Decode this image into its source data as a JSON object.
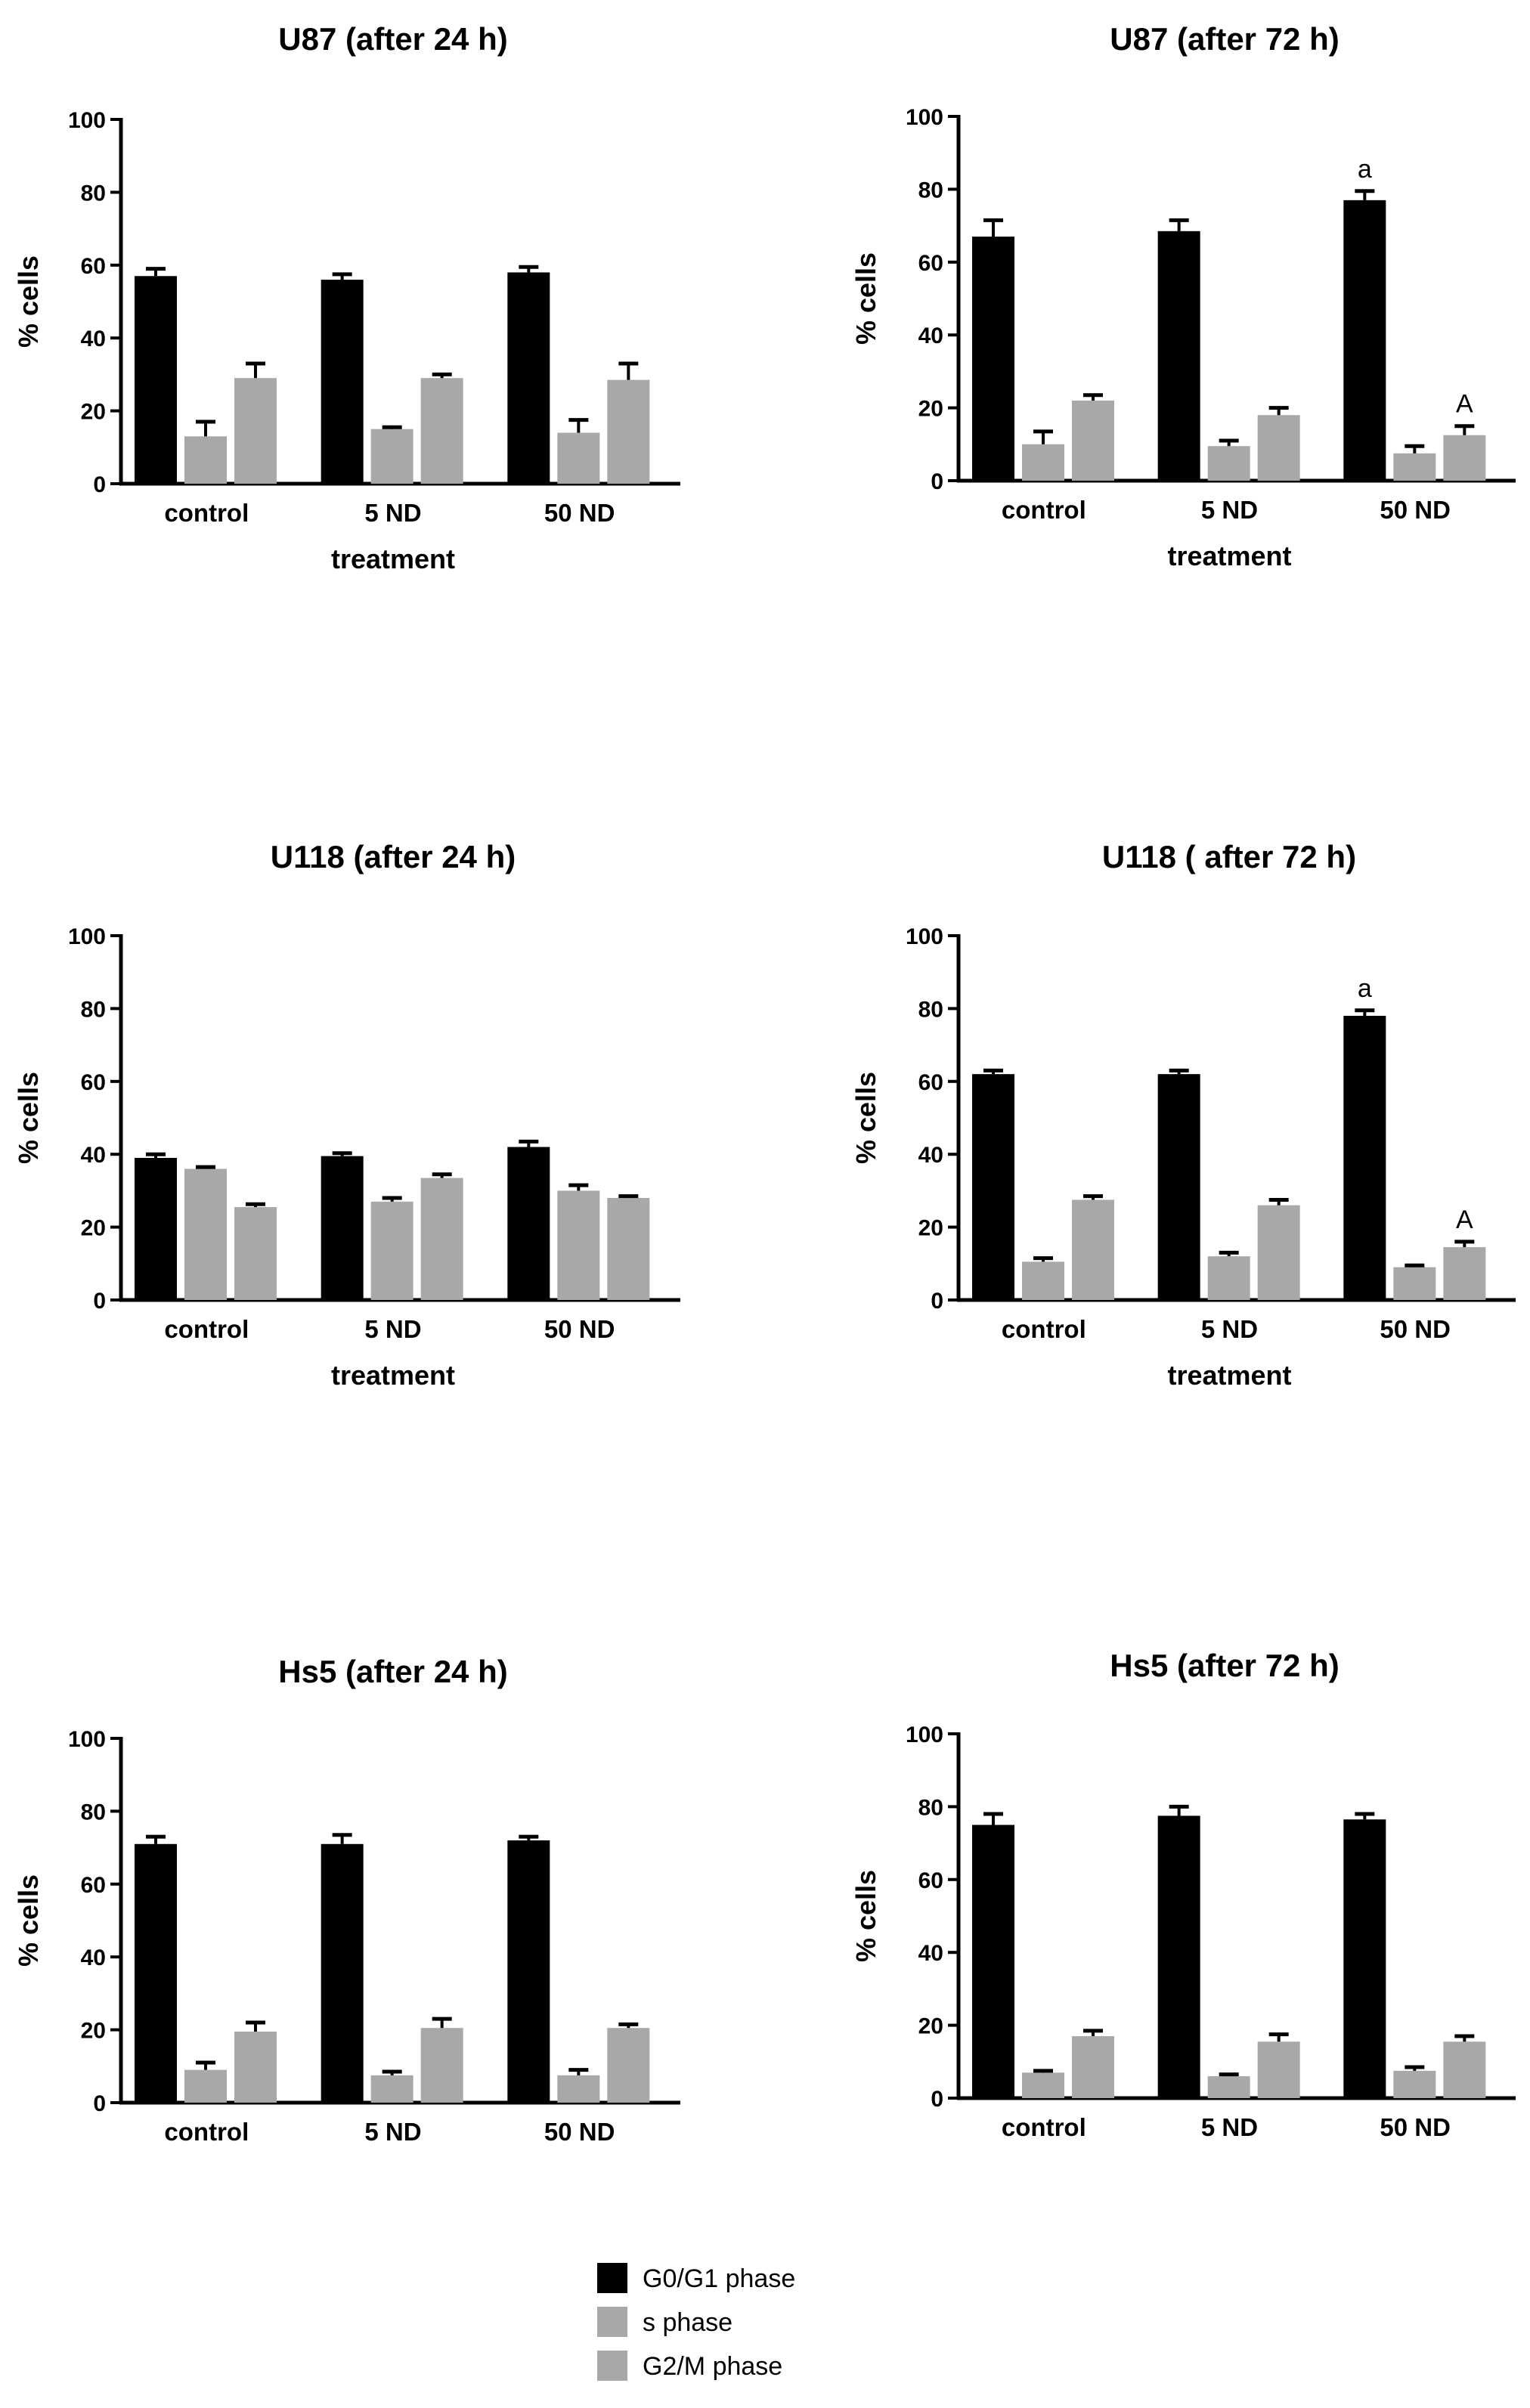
{
  "figure": {
    "legend": [
      {
        "label": "G0/G1 phase",
        "color": "#000000"
      },
      {
        "label": "s phase",
        "color": "#a7a8aa"
      },
      {
        "label": "G2/M phase",
        "color": "#a7a8aa"
      }
    ]
  },
  "chart_data": [
    {
      "type": "bar",
      "title": "U87 (after 24 h)",
      "xlabel": "treatment",
      "ylabel": "% cells",
      "ylim": [
        0,
        100
      ],
      "yticks": [
        0,
        20,
        40,
        60,
        80,
        100
      ],
      "categories": [
        "control",
        "5 ND",
        "50 ND"
      ],
      "series": [
        {
          "name": "G0/G1 phase",
          "values": [
            57,
            56,
            58
          ],
          "errors": [
            2,
            1.5,
            1.5
          ]
        },
        {
          "name": "s phase",
          "values": [
            13,
            15,
            14
          ],
          "errors": [
            4,
            0.5,
            3.5
          ]
        },
        {
          "name": "G2/M phase",
          "values": [
            29,
            29,
            28.5
          ],
          "errors": [
            4,
            1,
            4.5
          ]
        }
      ],
      "annotations": []
    },
    {
      "type": "bar",
      "title": "U87 (after 72 h)",
      "xlabel": "treatment",
      "ylabel": "% cells",
      "ylim": [
        0,
        100
      ],
      "yticks": [
        0,
        20,
        40,
        60,
        80,
        100
      ],
      "categories": [
        "control",
        "5 ND",
        "50 ND"
      ],
      "series": [
        {
          "name": "G0/G1 phase",
          "values": [
            67,
            68.5,
            77
          ],
          "errors": [
            4.5,
            3,
            2.5
          ]
        },
        {
          "name": "s phase",
          "values": [
            10,
            9.5,
            7.5
          ],
          "errors": [
            3.5,
            1.5,
            2
          ]
        },
        {
          "name": "G2/M phase",
          "values": [
            22,
            18,
            12.5
          ],
          "errors": [
            1.5,
            2,
            2.5
          ]
        }
      ],
      "annotations": [
        {
          "text": "a",
          "category": "50 ND",
          "series": "G0/G1 phase"
        },
        {
          "text": "A",
          "category": "50 ND",
          "series": "G2/M phase"
        }
      ]
    },
    {
      "type": "bar",
      "title": "U118 (after 24 h)",
      "xlabel": "treatment",
      "ylabel": "% cells",
      "ylim": [
        0,
        100
      ],
      "yticks": [
        0,
        20,
        40,
        60,
        80,
        100
      ],
      "categories": [
        "control",
        "5 ND",
        "50 ND"
      ],
      "series": [
        {
          "name": "G0/G1 phase",
          "values": [
            39,
            39.5,
            42
          ],
          "errors": [
            1,
            0.8,
            1.5
          ]
        },
        {
          "name": "s phase",
          "values": [
            36,
            27,
            30
          ],
          "errors": [
            0.5,
            1,
            1.5
          ]
        },
        {
          "name": "G2/M phase",
          "values": [
            25.5,
            33.5,
            28
          ],
          "errors": [
            0.8,
            1,
            0.5
          ]
        }
      ],
      "annotations": []
    },
    {
      "type": "bar",
      "title": "U118 ( after 72 h)",
      "xlabel": "treatment",
      "ylabel": "% cells",
      "ylim": [
        0,
        100
      ],
      "yticks": [
        0,
        20,
        40,
        60,
        80,
        100
      ],
      "categories": [
        "control",
        "5 ND",
        "50 ND"
      ],
      "series": [
        {
          "name": "G0/G1 phase",
          "values": [
            62,
            62,
            78
          ],
          "errors": [
            1,
            1,
            1.5
          ]
        },
        {
          "name": "s phase",
          "values": [
            10.5,
            12,
            9
          ],
          "errors": [
            1,
            1,
            0.5
          ]
        },
        {
          "name": "G2/M phase",
          "values": [
            27.5,
            26,
            14.5
          ],
          "errors": [
            1,
            1.5,
            1.5
          ]
        }
      ],
      "annotations": [
        {
          "text": "a",
          "category": "50 ND",
          "series": "G0/G1 phase"
        },
        {
          "text": "A",
          "category": "50 ND",
          "series": "G2/M phase"
        }
      ]
    },
    {
      "type": "bar",
      "title": "Hs5 (after 24 h)",
      "xlabel": "",
      "ylabel": "% cells",
      "ylim": [
        0,
        100
      ],
      "yticks": [
        0,
        20,
        40,
        60,
        80,
        100
      ],
      "categories": [
        "control",
        "5 ND",
        "50 ND"
      ],
      "series": [
        {
          "name": "G0/G1 phase",
          "values": [
            71,
            71,
            72
          ],
          "errors": [
            2,
            2.5,
            1
          ]
        },
        {
          "name": "s phase",
          "values": [
            9,
            7.5,
            7.5
          ],
          "errors": [
            2,
            1,
            1.5
          ]
        },
        {
          "name": "G2/M phase",
          "values": [
            19.5,
            20.5,
            20.5
          ],
          "errors": [
            2.5,
            2.5,
            1
          ]
        }
      ],
      "annotations": []
    },
    {
      "type": "bar",
      "title": "Hs5 (after 72 h)",
      "xlabel": "",
      "ylabel": "% cells",
      "ylim": [
        0,
        100
      ],
      "yticks": [
        0,
        20,
        40,
        60,
        80,
        100
      ],
      "categories": [
        "control",
        "5 ND",
        "50 ND"
      ],
      "series": [
        {
          "name": "G0/G1 phase",
          "values": [
            75,
            77.5,
            76.5
          ],
          "errors": [
            3,
            2.5,
            1.5
          ]
        },
        {
          "name": "s phase",
          "values": [
            7,
            6,
            7.5
          ],
          "errors": [
            0.5,
            0.5,
            1
          ]
        },
        {
          "name": "G2/M phase",
          "values": [
            17,
            15.5,
            15.5
          ],
          "errors": [
            1.5,
            2,
            1.5
          ]
        }
      ],
      "annotations": []
    }
  ]
}
